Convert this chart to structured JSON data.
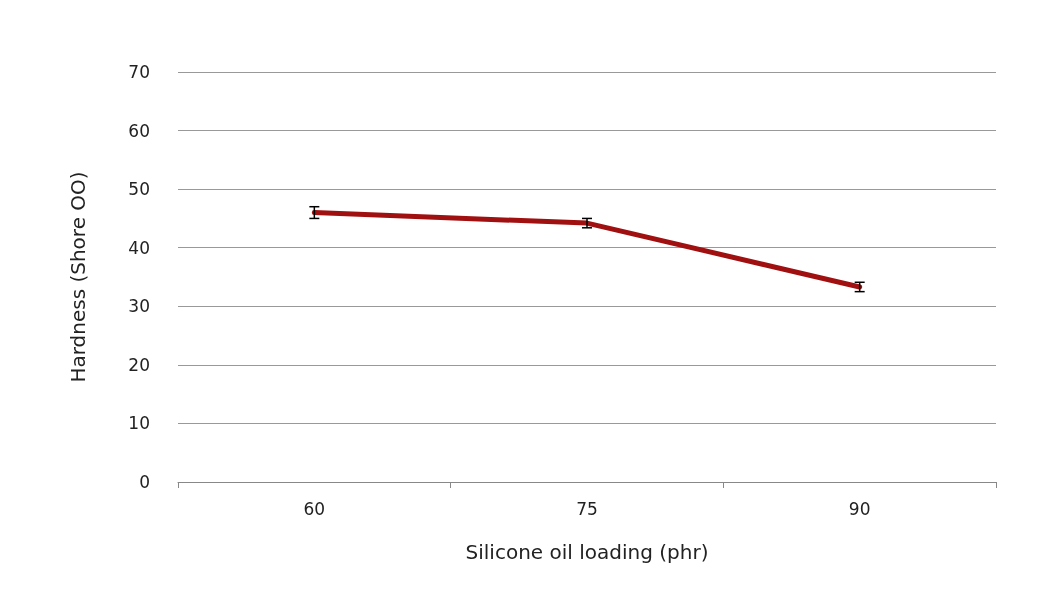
{
  "chart_data": {
    "type": "line",
    "xlabel": "Silicone oil loading (phr)",
    "ylabel": "Hardness (Shore OO)",
    "categories": [
      "60",
      "75",
      "90"
    ],
    "series": [
      {
        "color": "#a01010",
        "values": [
          46,
          44.2,
          33.3
        ],
        "errors": [
          1,
          0.8,
          0.8
        ]
      }
    ],
    "ylim": [
      0,
      70
    ],
    "yticks": [
      0,
      10,
      20,
      30,
      40,
      50,
      60,
      70
    ],
    "grid": "y",
    "marker": "none",
    "line_style": "solid"
  }
}
